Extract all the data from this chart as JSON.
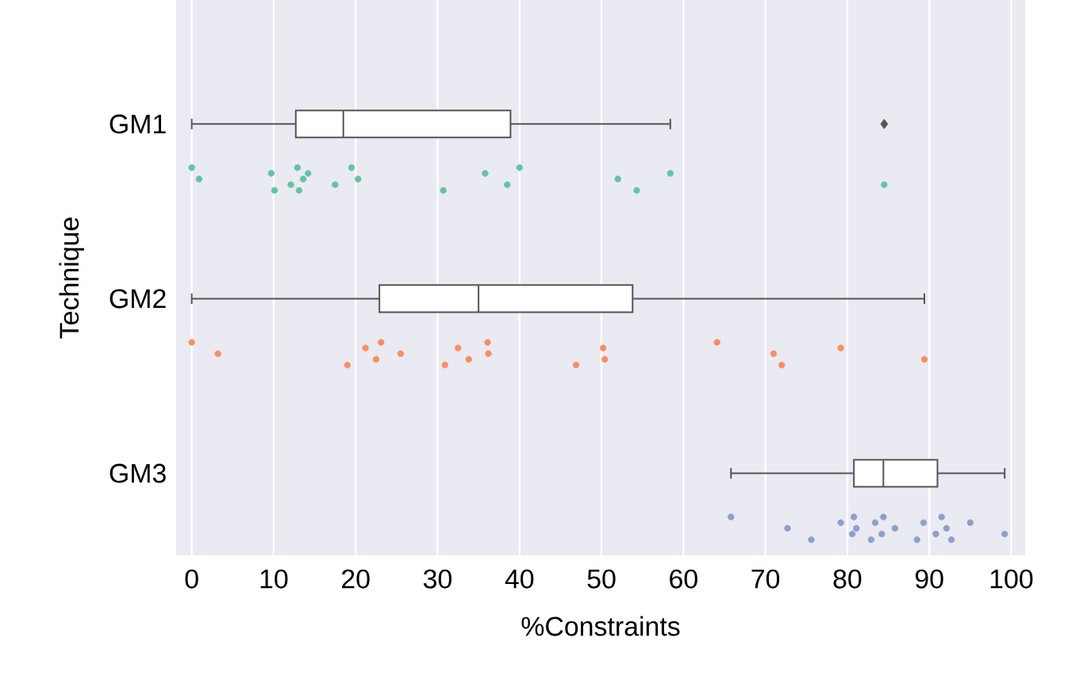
{
  "chart_data": {
    "type": "box",
    "orientation": "horizontal",
    "categories": [
      "GM1",
      "GM2",
      "GM3"
    ],
    "xlabel": "%Constraints",
    "ylabel": "Technique",
    "xlim": [
      -1.9,
      101.7
    ],
    "xticks": [
      0,
      10,
      20,
      30,
      40,
      50,
      60,
      70,
      80,
      90,
      100
    ],
    "grid": "x",
    "boxes": [
      {
        "low": 0,
        "q1": 12.7,
        "median": 18.5,
        "q3": 38.9,
        "high": 58.4,
        "outliers": [
          84.5
        ]
      },
      {
        "low": 0,
        "q1": 22.9,
        "median": 35.0,
        "q3": 53.8,
        "high": 89.4
      },
      {
        "low": 65.8,
        "q1": 80.8,
        "median": 84.4,
        "q3": 91.0,
        "high": 99.2
      }
    ],
    "series": [
      {
        "type": "scatter",
        "color": "#66c2a5",
        "marker": "circle",
        "x": [
          "GM1",
          "GM1",
          "GM1",
          "GM1",
          "GM1",
          "GM1",
          "GM1",
          "GM1",
          "GM1",
          "GM1",
          "GM1",
          "GM1",
          "GM1",
          "GM1",
          "GM1",
          "GM1",
          "GM1",
          "GM1",
          "GM1",
          "GM1"
        ],
        "values": [
          0,
          0.9,
          10.1,
          9.7,
          12.1,
          12.9,
          13.6,
          13.1,
          14.2,
          17.5,
          19.5,
          20.3,
          30.7,
          35.8,
          38.5,
          40.0,
          52.0,
          54.3,
          58.4,
          84.5
        ]
      },
      {
        "type": "scatter",
        "color": "#fc8d62",
        "marker": "circle",
        "x": [
          "GM2",
          "GM2",
          "GM2",
          "GM2",
          "GM2",
          "GM2",
          "GM2",
          "GM2",
          "GM2",
          "GM2",
          "GM2",
          "GM2",
          "GM2",
          "GM2",
          "GM2",
          "GM2",
          "GM2",
          "GM2",
          "GM2",
          "GM2"
        ],
        "values": [
          0,
          3.2,
          19.0,
          21.2,
          22.5,
          23.1,
          25.5,
          30.9,
          32.5,
          33.8,
          36.1,
          36.2,
          46.9,
          50.2,
          50.4,
          64.1,
          71.0,
          72.0,
          79.2,
          89.4
        ]
      },
      {
        "type": "scatter",
        "color": "#8da0cb",
        "marker": "circle",
        "x": [
          "GM3",
          "GM3",
          "GM3",
          "GM3",
          "GM3",
          "GM3",
          "GM3",
          "GM3",
          "GM3",
          "GM3",
          "GM3",
          "GM3",
          "GM3",
          "GM3",
          "GM3",
          "GM3",
          "GM3",
          "GM3",
          "GM3",
          "GM3"
        ],
        "values": [
          65.8,
          72.7,
          75.6,
          79.2,
          80.6,
          80.8,
          81.1,
          82.9,
          83.4,
          84.2,
          84.4,
          85.8,
          88.5,
          89.3,
          90.8,
          91.5,
          92.1,
          92.7,
          95.0,
          99.2
        ]
      }
    ]
  }
}
